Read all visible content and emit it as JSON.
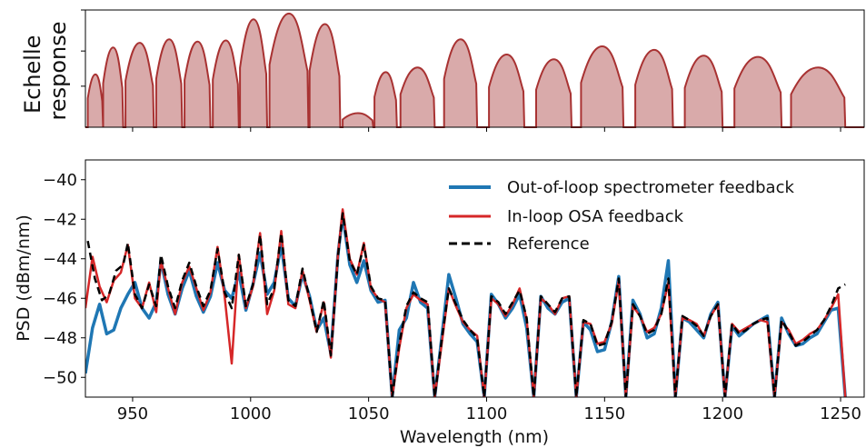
{
  "chart_data": [
    {
      "type": "area",
      "ylabel_lines": [
        "Echelle",
        "response"
      ],
      "xlim": [
        930,
        1260
      ],
      "ylim": [
        0,
        1
      ],
      "color": "#a83232",
      "fill": "#d9aaaa",
      "channels": [
        {
          "start": 931,
          "end": 937.5,
          "height": 0.45
        },
        {
          "start": 937.5,
          "end": 946,
          "height": 0.68
        },
        {
          "start": 947,
          "end": 959,
          "height": 0.72
        },
        {
          "start": 960,
          "end": 971,
          "height": 0.75
        },
        {
          "start": 972,
          "end": 983,
          "height": 0.73
        },
        {
          "start": 984,
          "end": 995,
          "height": 0.74
        },
        {
          "start": 995.5,
          "end": 1007,
          "height": 0.92
        },
        {
          "start": 1008,
          "end": 1024.5,
          "height": 0.97
        },
        {
          "start": 1025,
          "end": 1038,
          "height": 0.88
        },
        {
          "start": 1039,
          "end": 1052,
          "height": 0.12
        },
        {
          "start": 1052.5,
          "end": 1062,
          "height": 0.47
        },
        {
          "start": 1063.5,
          "end": 1078,
          "height": 0.51
        },
        {
          "start": 1082,
          "end": 1096,
          "height": 0.75
        },
        {
          "start": 1101,
          "end": 1116,
          "height": 0.62
        },
        {
          "start": 1121,
          "end": 1136,
          "height": 0.58
        },
        {
          "start": 1140,
          "end": 1158,
          "height": 0.69
        },
        {
          "start": 1163,
          "end": 1179,
          "height": 0.66
        },
        {
          "start": 1184,
          "end": 1200,
          "height": 0.61
        },
        {
          "start": 1205,
          "end": 1225,
          "height": 0.6
        },
        {
          "start": 1229,
          "end": 1252,
          "height": 0.51
        }
      ],
      "xticks": [
        950,
        1000,
        1050,
        1100,
        1150,
        1200,
        1250
      ]
    },
    {
      "type": "line",
      "xlabel": "Wavelength (nm)",
      "ylabel": "PSD (dBm/nm)",
      "xlim": [
        930,
        1260
      ],
      "ylim": [
        -51,
        -39
      ],
      "xticks": [
        950,
        1000,
        1050,
        1100,
        1150,
        1200,
        1250
      ],
      "xtick_labels": [
        "950",
        "1000",
        "1050",
        "1100",
        "1150",
        "1200",
        "1250"
      ],
      "yticks": [
        -50,
        -48,
        -46,
        -44,
        -42,
        -40
      ],
      "ytick_labels": [
        "−50",
        "−48",
        "−46",
        "−44",
        "−42",
        "−40"
      ],
      "legend_position": "top-right",
      "series": [
        {
          "name": "Out-of-loop spectrometer feedback",
          "color": "#1f77b4",
          "style": "solid",
          "x": [
            930,
            933,
            936,
            939,
            942,
            945,
            948,
            951,
            954,
            957,
            960,
            962,
            965,
            968,
            971,
            974,
            977,
            980,
            983,
            986,
            989,
            992,
            995,
            998,
            1001,
            1004,
            1007,
            1010,
            1013,
            1016,
            1019,
            1022,
            1025,
            1028,
            1031,
            1034,
            1037,
            1039,
            1042,
            1045,
            1048,
            1051,
            1054,
            1057,
            1060,
            1063,
            1066,
            1069,
            1072,
            1075,
            1078,
            1081,
            1084,
            1087,
            1090,
            1093,
            1096,
            1099,
            1102,
            1105,
            1108,
            1111,
            1114,
            1117,
            1120,
            1123,
            1126,
            1129,
            1132,
            1135,
            1138,
            1141,
            1144,
            1147,
            1150,
            1153,
            1156,
            1159,
            1162,
            1165,
            1168,
            1171,
            1174,
            1177,
            1180,
            1183,
            1186,
            1189,
            1192,
            1195,
            1198,
            1201,
            1204,
            1207,
            1210,
            1213,
            1216,
            1219,
            1222,
            1225,
            1228,
            1231,
            1234,
            1237,
            1240,
            1243,
            1246,
            1249,
            1252
          ],
          "y": [
            -49.8,
            -47.5,
            -46.3,
            -47.8,
            -47.6,
            -46.5,
            -45.8,
            -45.2,
            -46.5,
            -47.0,
            -46.2,
            -44.1,
            -45.8,
            -46.8,
            -45.5,
            -44.6,
            -45.9,
            -46.7,
            -45.9,
            -44.2,
            -45.6,
            -46.0,
            -44.7,
            -46.6,
            -45.3,
            -43.7,
            -45.8,
            -45.2,
            -43.3,
            -46.0,
            -46.4,
            -44.8,
            -45.9,
            -47.6,
            -47.0,
            -48.8,
            -43.8,
            -41.8,
            -44.3,
            -45.2,
            -44.1,
            -45.6,
            -46.2,
            -46.1,
            -51.0,
            -47.6,
            -47.0,
            -45.2,
            -46.2,
            -46.5,
            -51.0,
            -48.0,
            -44.8,
            -46.0,
            -47.3,
            -47.8,
            -48.2,
            -51.0,
            -45.8,
            -46.3,
            -47.0,
            -46.5,
            -45.8,
            -47.5,
            -51.0,
            -45.9,
            -46.5,
            -46.8,
            -46.2,
            -46.0,
            -51.0,
            -47.2,
            -47.6,
            -48.7,
            -48.6,
            -47.2,
            -44.9,
            -51.0,
            -46.1,
            -46.8,
            -48.0,
            -47.8,
            -46.5,
            -44.1,
            -51.0,
            -47.0,
            -47.2,
            -47.6,
            -48.0,
            -46.8,
            -46.2,
            -51.0,
            -47.4,
            -47.9,
            -47.6,
            -47.3,
            -47.1,
            -46.9,
            -51.0,
            -47.0,
            -47.8,
            -48.4,
            -48.3,
            -48.0,
            -47.8,
            -47.2,
            -46.6,
            -46.5,
            -51.0
          ]
        },
        {
          "name": "In-loop OSA feedback",
          "color": "#d62728",
          "style": "solid",
          "x": [
            930,
            933,
            936,
            939,
            942,
            945,
            948,
            951,
            954,
            957,
            960,
            962,
            965,
            968,
            971,
            974,
            977,
            980,
            983,
            986,
            989,
            992,
            995,
            998,
            1001,
            1004,
            1007,
            1010,
            1013,
            1016,
            1019,
            1022,
            1025,
            1028,
            1031,
            1034,
            1037,
            1039,
            1042,
            1045,
            1048,
            1051,
            1054,
            1057,
            1060,
            1063,
            1066,
            1069,
            1072,
            1075,
            1078,
            1081,
            1084,
            1087,
            1090,
            1093,
            1096,
            1099,
            1102,
            1105,
            1108,
            1111,
            1114,
            1117,
            1120,
            1123,
            1126,
            1129,
            1132,
            1135,
            1138,
            1141,
            1144,
            1147,
            1150,
            1153,
            1156,
            1159,
            1162,
            1165,
            1168,
            1171,
            1174,
            1177,
            1180,
            1183,
            1186,
            1189,
            1192,
            1195,
            1198,
            1201,
            1204,
            1207,
            1210,
            1213,
            1216,
            1219,
            1222,
            1225,
            1228,
            1231,
            1234,
            1237,
            1240,
            1243,
            1246,
            1249,
            1252
          ],
          "y": [
            -46.5,
            -43.9,
            -45.4,
            -46.2,
            -45.1,
            -44.7,
            -43.3,
            -46.0,
            -46.5,
            -45.2,
            -46.7,
            -44.1,
            -45.5,
            -46.8,
            -45.2,
            -44.4,
            -45.5,
            -46.6,
            -45.7,
            -43.4,
            -45.9,
            -49.3,
            -43.8,
            -46.5,
            -45.4,
            -42.7,
            -46.8,
            -45.6,
            -42.6,
            -46.3,
            -46.5,
            -44.6,
            -46.1,
            -47.7,
            -46.2,
            -49.0,
            -43.8,
            -41.5,
            -44.0,
            -44.8,
            -43.2,
            -45.5,
            -46.0,
            -46.2,
            -51.0,
            -48.5,
            -46.5,
            -45.8,
            -46.1,
            -46.3,
            -51.0,
            -48.3,
            -45.5,
            -46.4,
            -47.2,
            -47.6,
            -47.9,
            -51.0,
            -46.0,
            -46.3,
            -46.9,
            -46.3,
            -45.5,
            -47.1,
            -51.0,
            -46.0,
            -46.3,
            -46.8,
            -46.0,
            -45.9,
            -51.0,
            -47.2,
            -47.3,
            -48.3,
            -48.2,
            -47.3,
            -45.1,
            -51.0,
            -46.4,
            -46.9,
            -47.7,
            -47.5,
            -46.8,
            -45.2,
            -51.0,
            -47.0,
            -47.1,
            -47.3,
            -47.9,
            -46.9,
            -46.3,
            -51.0,
            -47.3,
            -47.7,
            -47.5,
            -47.3,
            -47.1,
            -47.2,
            -51.0,
            -47.2,
            -47.6,
            -48.3,
            -48.1,
            -47.8,
            -47.6,
            -47.1,
            -46.5,
            -45.8,
            -51.0
          ]
        },
        {
          "name": "Reference",
          "color": "#000000",
          "style": "dashed",
          "x": [
            931,
            934,
            937,
            940,
            943,
            946,
            948,
            951,
            954,
            957,
            960,
            962,
            965,
            968,
            971,
            974,
            977,
            980,
            983,
            986,
            989,
            992,
            995,
            998,
            1001,
            1004,
            1007,
            1010,
            1013,
            1016,
            1019,
            1022,
            1025,
            1028,
            1031,
            1034,
            1037,
            1039,
            1042,
            1045,
            1048,
            1051,
            1054,
            1057,
            1060,
            1063,
            1066,
            1069,
            1072,
            1075,
            1078,
            1081,
            1084,
            1087,
            1090,
            1093,
            1096,
            1099,
            1102,
            1105,
            1108,
            1111,
            1114,
            1117,
            1120,
            1123,
            1126,
            1129,
            1132,
            1135,
            1138,
            1141,
            1144,
            1147,
            1150,
            1153,
            1156,
            1159,
            1162,
            1165,
            1168,
            1171,
            1174,
            1177,
            1180,
            1183,
            1186,
            1189,
            1192,
            1195,
            1198,
            1201,
            1204,
            1207,
            1210,
            1213,
            1216,
            1219,
            1222,
            1225,
            1228,
            1231,
            1234,
            1237,
            1240,
            1243,
            1246,
            1249,
            1252
          ],
          "y": [
            -43.1,
            -45.0,
            -46.1,
            -45.8,
            -44.6,
            -44.3,
            -43.2,
            -45.8,
            -46.5,
            -45.3,
            -46.4,
            -43.8,
            -45.4,
            -46.5,
            -45.1,
            -44.2,
            -45.4,
            -46.4,
            -45.6,
            -43.5,
            -45.7,
            -46.5,
            -43.8,
            -46.4,
            -45.3,
            -42.8,
            -46.3,
            -45.5,
            -42.7,
            -46.1,
            -46.4,
            -44.5,
            -46.0,
            -47.7,
            -46.1,
            -48.9,
            -43.9,
            -41.7,
            -44.1,
            -44.8,
            -43.3,
            -45.4,
            -46.0,
            -46.1,
            -51.0,
            -48.3,
            -46.4,
            -45.7,
            -46.0,
            -46.2,
            -51.0,
            -48.1,
            -45.5,
            -46.3,
            -47.1,
            -47.6,
            -48.0,
            -51.0,
            -45.9,
            -46.2,
            -46.8,
            -46.2,
            -45.6,
            -47.0,
            -51.0,
            -45.9,
            -46.3,
            -46.7,
            -46.0,
            -45.9,
            -51.0,
            -47.1,
            -47.3,
            -48.4,
            -48.3,
            -47.2,
            -45.0,
            -51.0,
            -46.3,
            -46.9,
            -47.8,
            -47.6,
            -46.8,
            -45.0,
            -51.0,
            -46.9,
            -47.1,
            -47.4,
            -47.9,
            -46.9,
            -46.3,
            -51.0,
            -47.3,
            -47.8,
            -47.6,
            -47.3,
            -47.1,
            -47.0,
            -51.0,
            -47.1,
            -47.7,
            -48.4,
            -48.2,
            -47.9,
            -47.6,
            -47.1,
            -46.4,
            -45.5,
            -45.3
          ]
        }
      ]
    }
  ]
}
